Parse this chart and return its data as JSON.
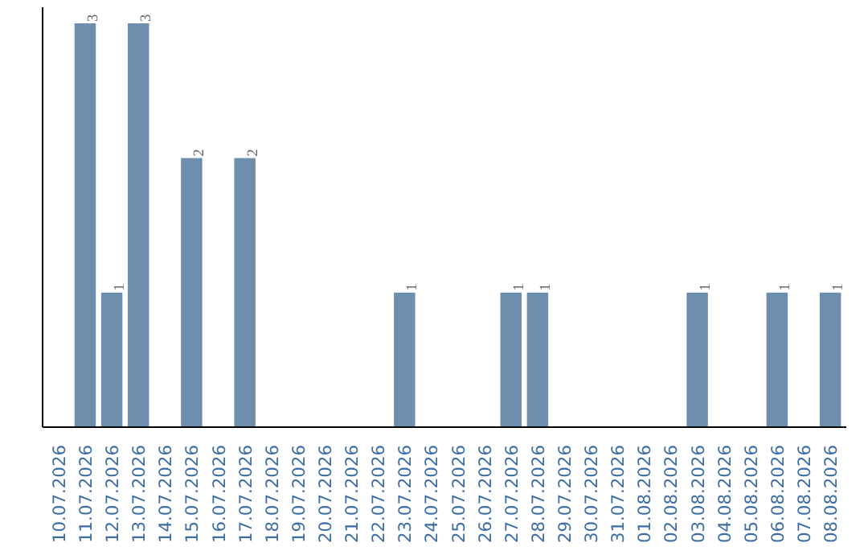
{
  "chart_data": {
    "type": "bar",
    "categories": [
      "10.07.2026",
      "11.07.2026",
      "12.07.2026",
      "13.07.2026",
      "14.07.2026",
      "15.07.2026",
      "16.07.2026",
      "17.07.2026",
      "18.07.2026",
      "19.07.2026",
      "20.07.2026",
      "21.07.2026",
      "22.07.2026",
      "23.07.2026",
      "24.07.2026",
      "25.07.2026",
      "26.07.2026",
      "27.07.2026",
      "28.07.2026",
      "29.07.2026",
      "30.07.2026",
      "31.07.2026",
      "01.08.2026",
      "02.08.2026",
      "03.08.2026",
      "04.08.2026",
      "05.08.2026",
      "06.08.2026",
      "07.08.2026",
      "08.08.2026"
    ],
    "values": [
      0,
      3,
      1,
      3,
      0,
      2,
      0,
      2,
      0,
      0,
      0,
      0,
      0,
      1,
      0,
      0,
      0,
      1,
      1,
      0,
      0,
      0,
      0,
      0,
      1,
      0,
      0,
      1,
      0,
      1
    ],
    "value_labels": [
      null,
      "3",
      "1",
      "3",
      null,
      "2",
      null,
      "2",
      null,
      null,
      null,
      null,
      null,
      "1",
      null,
      null,
      null,
      "1",
      "1",
      null,
      null,
      null,
      null,
      null,
      "1",
      null,
      null,
      "1",
      null,
      "1"
    ],
    "color": "#6d8fad",
    "ylim": [
      0,
      3.12
    ],
    "tick_labels": "x",
    "grid": false
  }
}
